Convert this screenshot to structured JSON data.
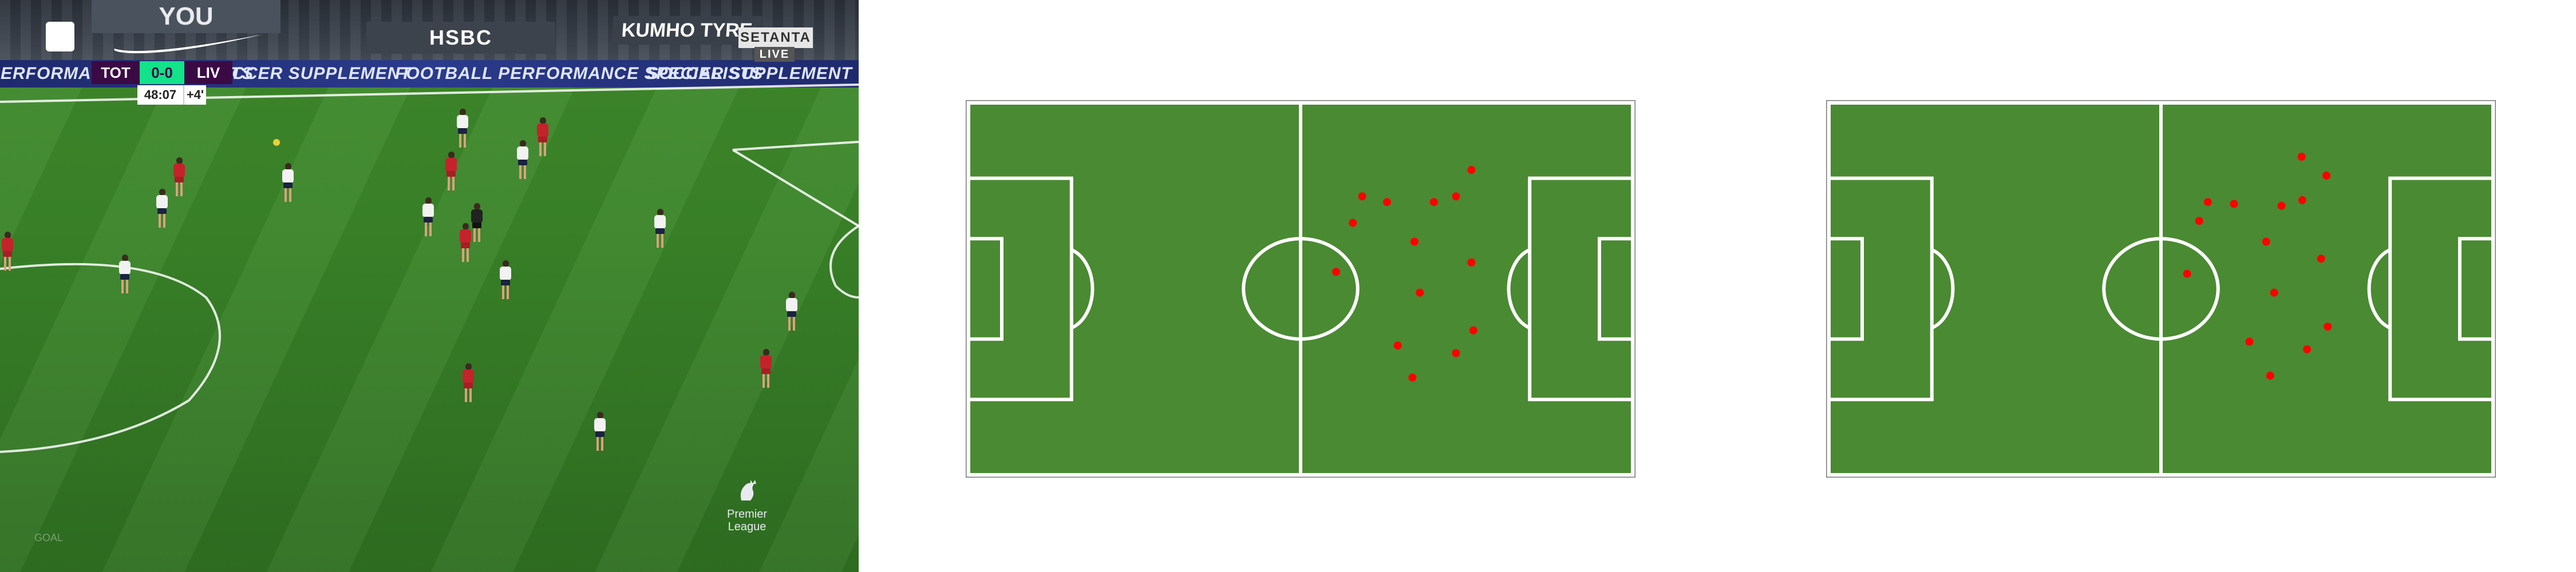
{
  "broadcast": {
    "scorebug": {
      "home": "TOT",
      "score": "0-0",
      "away": "LIV",
      "time": "48:07",
      "added": "+4'"
    },
    "broadcaster": "SETANTA",
    "live_label": "LIVE",
    "boards": {
      "top": "YOU",
      "hsbc": "HSBC",
      "kumho": "KUMHO TYRE"
    },
    "ads": [
      "PERFORMANCE SPECIALISTS",
      "SOCCER SUPPLEMENT",
      "FOOTBALL PERFORMANCE SPECIALISTS",
      "SOCCER SUPPLEMENT"
    ],
    "league_logo": "Premier League",
    "watermark": "GOAL"
  },
  "diagrams": [
    {
      "pitch_color": "#4a8a32",
      "line_color": "#ffffff",
      "marker_color": "#ff0000",
      "player_positions": [
        [
          0.755,
          0.185
        ],
        [
          0.592,
          0.255
        ],
        [
          0.629,
          0.27
        ],
        [
          0.699,
          0.27
        ],
        [
          0.732,
          0.255
        ],
        [
          0.578,
          0.325
        ],
        [
          0.67,
          0.375
        ],
        [
          0.755,
          0.43
        ],
        [
          0.553,
          0.455
        ],
        [
          0.678,
          0.51
        ],
        [
          0.758,
          0.61
        ],
        [
          0.645,
          0.65
        ],
        [
          0.732,
          0.67
        ],
        [
          0.667,
          0.735
        ]
      ]
    },
    {
      "pitch_color": "#4a8a32",
      "line_color": "#ffffff",
      "marker_color": "#ff0000",
      "player_positions": [
        [
          0.71,
          0.15
        ],
        [
          0.747,
          0.2
        ],
        [
          0.57,
          0.27
        ],
        [
          0.609,
          0.275
        ],
        [
          0.68,
          0.28
        ],
        [
          0.711,
          0.265
        ],
        [
          0.557,
          0.32
        ],
        [
          0.657,
          0.375
        ],
        [
          0.739,
          0.42
        ],
        [
          0.539,
          0.46
        ],
        [
          0.669,
          0.51
        ],
        [
          0.749,
          0.6
        ],
        [
          0.632,
          0.64
        ],
        [
          0.718,
          0.66
        ],
        [
          0.663,
          0.73
        ]
      ]
    }
  ]
}
